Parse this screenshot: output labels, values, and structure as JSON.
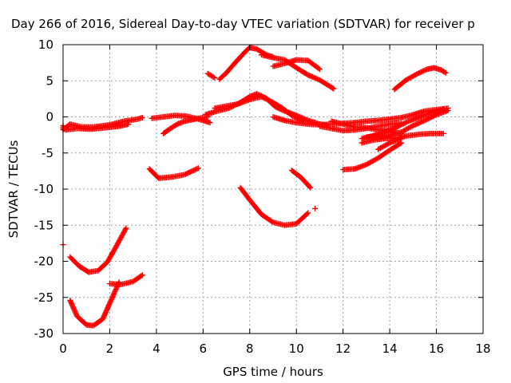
{
  "chart_data": {
    "type": "scatter",
    "title": "Day 266 of 2016, Sidereal Day-to-day VTEC variation (SDTVAR) for receiver p",
    "xlabel": "GPS time / hours",
    "ylabel": "SDTVAR / TECUs",
    "xlim": [
      0,
      18
    ],
    "ylim": [
      -30,
      10
    ],
    "xticks": [
      0,
      2,
      4,
      6,
      8,
      10,
      12,
      14,
      16,
      18
    ],
    "yticks": [
      -30,
      -25,
      -20,
      -15,
      -10,
      -5,
      0,
      5,
      10
    ],
    "grid": true,
    "marker": "+",
    "color": "#ff0000",
    "series": [
      {
        "x": [
          0.0,
          0.0,
          0.3,
          0.8,
          1.3,
          2.0,
          2.6,
          3.2,
          3.4
        ],
        "y": [
          -1.2,
          -1.8,
          -1.0,
          -1.4,
          -1.4,
          -1.1,
          -0.6,
          -0.3,
          -0.1
        ]
      },
      {
        "x": [
          0.1,
          0.6,
          1.2,
          1.8,
          2.4,
          2.8
        ],
        "y": [
          -1.8,
          -1.6,
          -1.7,
          -1.5,
          -1.3,
          -1.0
        ]
      },
      {
        "x": [
          3.8,
          4.3,
          4.8,
          5.3,
          5.8,
          6.3
        ],
        "y": [
          -0.2,
          0.0,
          0.2,
          0.1,
          -0.3,
          -0.8
        ]
      },
      {
        "x": [
          4.3,
          4.6,
          4.9,
          5.2,
          5.5,
          5.8,
          6.2
        ],
        "y": [
          -2.3,
          -1.6,
          -1.0,
          -0.6,
          -0.4,
          -0.2,
          0.0
        ]
      },
      {
        "x": [
          6.1,
          6.6,
          7.1,
          7.6,
          8.0,
          8.3,
          8.7,
          9.1,
          9.5,
          10.0,
          10.5,
          11.0,
          11.3
        ],
        "y": [
          0.3,
          0.8,
          1.2,
          2.0,
          2.8,
          3.2,
          2.6,
          1.4,
          0.8,
          0.2,
          -0.5,
          -1.0,
          -1.2
        ]
      },
      {
        "x": [
          6.5,
          7.0,
          7.5,
          8.0,
          8.5,
          9.0,
          9.4,
          9.8,
          10.3
        ],
        "y": [
          1.2,
          1.5,
          1.8,
          2.4,
          2.8,
          2.0,
          1.2,
          0.2,
          -0.6
        ]
      },
      {
        "x": [
          9.0,
          9.5,
          10.0,
          10.5,
          11.0,
          11.5,
          12.0,
          12.5
        ],
        "y": [
          0.0,
          -0.5,
          -0.8,
          -1.0,
          -1.1,
          -1.0,
          -0.9,
          -0.8
        ]
      },
      {
        "x": [
          11.0,
          11.5,
          12.0,
          12.5,
          13.0,
          13.5,
          14.0,
          14.5
        ],
        "y": [
          -1.3,
          -1.6,
          -1.9,
          -1.8,
          -1.6,
          -1.3,
          -1.0,
          -0.9
        ]
      },
      {
        "x": [
          11.5,
          12.0,
          12.5,
          13.0,
          13.5,
          14.0,
          14.5
        ],
        "y": [
          -0.6,
          -1.0,
          -1.4,
          -1.5,
          -1.8,
          -2.0,
          -2.3
        ]
      },
      {
        "x": [
          12.5,
          13.0,
          13.5,
          14.0,
          14.5,
          15.0,
          15.5,
          16.0,
          16.5
        ],
        "y": [
          -0.8,
          -0.6,
          -0.5,
          -0.3,
          -0.1,
          0.3,
          0.8,
          1.0,
          1.2
        ]
      },
      {
        "x": [
          12.8,
          13.3,
          13.8,
          14.3,
          14.8,
          15.3,
          15.8,
          16.3
        ],
        "y": [
          -3.0,
          -2.6,
          -2.0,
          -1.4,
          -0.6,
          0.0,
          0.6,
          1.0
        ]
      },
      {
        "x": [
          12.8,
          13.3,
          13.8,
          14.3,
          14.8,
          15.3,
          15.8,
          16.3
        ],
        "y": [
          -3.6,
          -3.2,
          -3.0,
          -2.9,
          -2.6,
          -2.4,
          -2.3,
          -2.3
        ]
      },
      {
        "x": [
          13.0,
          13.5,
          14.0,
          14.5,
          15.0,
          15.5,
          16.0,
          16.5
        ],
        "y": [
          -2.8,
          -2.6,
          -2.5,
          -2.1,
          -1.2,
          -0.5,
          0.3,
          0.9
        ]
      },
      {
        "x": [
          13.5,
          14.0,
          14.5
        ],
        "y": [
          -4.5,
          -3.6,
          -3.0
        ]
      },
      {
        "x": [
          12.0,
          12.5,
          13.0,
          13.5,
          14.0,
          14.5
        ],
        "y": [
          -7.3,
          -7.2,
          -6.6,
          -5.7,
          -4.6,
          -3.6
        ]
      },
      {
        "x": [
          6.2,
          6.5
        ],
        "y": [
          6.0,
          5.4
        ]
      },
      {
        "x": [
          6.7,
          7.0,
          7.4,
          7.8,
          8.0,
          8.3,
          8.7,
          9.0
        ],
        "y": [
          5.2,
          6.1,
          7.6,
          9.0,
          9.6,
          9.4,
          8.6,
          8.3
        ]
      },
      {
        "x": [
          8.5,
          9.0,
          9.5,
          10.0,
          10.5,
          11.0,
          11.6
        ],
        "y": [
          8.6,
          8.2,
          7.9,
          6.8,
          5.8,
          5.1,
          3.9
        ]
      },
      {
        "x": [
          9.0,
          9.5,
          10.0,
          10.5,
          11.0
        ],
        "y": [
          7.0,
          7.4,
          7.9,
          7.8,
          6.6
        ]
      },
      {
        "x": [
          14.2,
          14.7,
          15.2,
          15.6,
          15.9,
          16.2,
          16.4
        ],
        "y": [
          3.8,
          5.1,
          6.0,
          6.6,
          6.8,
          6.5,
          6.1
        ]
      },
      {
        "x": [
          3.7,
          4.1,
          4.7,
          5.2,
          5.8
        ],
        "y": [
          -7.2,
          -8.5,
          -8.3,
          -8.0,
          -7.1
        ]
      },
      {
        "x": [
          7.6,
          8.0,
          8.5,
          9.0,
          9.5,
          10.0,
          10.5
        ],
        "y": [
          -9.8,
          -11.5,
          -13.5,
          -14.6,
          -15.0,
          -14.8,
          -13.3
        ]
      },
      {
        "x": [
          9.8,
          10.2,
          10.6
        ],
        "y": [
          -7.4,
          -8.4,
          -9.8
        ]
      },
      {
        "x": [
          10.8
        ],
        "y": [
          -12.7
        ]
      },
      {
        "x": [
          0.0
        ],
        "y": [
          -17.7
        ]
      },
      {
        "x": [
          0.3,
          0.7,
          1.1,
          1.5,
          1.9,
          2.3,
          2.7
        ],
        "y": [
          -19.4,
          -20.7,
          -21.5,
          -21.3,
          -20.1,
          -17.8,
          -15.4
        ]
      },
      {
        "x": [
          0.3,
          0.6,
          1.0,
          1.3,
          1.7,
          2.0,
          2.4
        ],
        "y": [
          -25.4,
          -27.6,
          -28.8,
          -28.9,
          -28.0,
          -25.8,
          -22.9
        ]
      },
      {
        "x": [
          2.0,
          2.5,
          3.0,
          3.4
        ],
        "y": [
          -23.1,
          -23.2,
          -22.8,
          -21.9
        ]
      }
    ]
  }
}
